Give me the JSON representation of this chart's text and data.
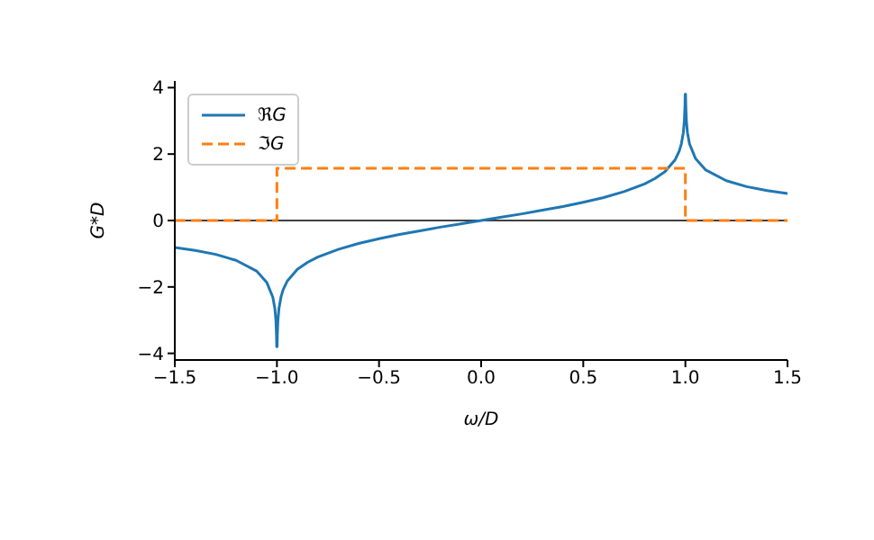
{
  "chart_data": {
    "type": "line",
    "xlabel": "ω/D",
    "ylabel": "G*D",
    "xlim": [
      -1.5,
      1.5
    ],
    "ylim": [
      -4.2,
      4.2
    ],
    "xticks": [
      {
        "value": -1.5,
        "label": "−1.5"
      },
      {
        "value": -1.0,
        "label": "−1.0"
      },
      {
        "value": -0.5,
        "label": "−0.5"
      },
      {
        "value": 0,
        "label": "0.0"
      },
      {
        "value": 0.5,
        "label": "0.5"
      },
      {
        "value": 1.0,
        "label": "1.0"
      },
      {
        "value": 1.5,
        "label": "1.5"
      }
    ],
    "yticks": [
      {
        "value": -4,
        "label": "−4"
      },
      {
        "value": -2,
        "label": "−2"
      },
      0,
      2,
      4
    ],
    "grid": false,
    "legend": "top left",
    "marker": "none",
    "ref_lines": [
      {
        "axis": "y",
        "value": 0,
        "color": "#000000"
      }
    ],
    "series": [
      {
        "name": "ℜG",
        "color": "#1f77b4",
        "line_style": "solid",
        "x": [
          -1.5,
          -1.4,
          -1.3,
          -1.2,
          -1.1,
          -1.05,
          -1.02,
          -1.01,
          -1.005,
          -1.002,
          -1.001,
          -0.999,
          -0.998,
          -0.995,
          -0.99,
          -0.98,
          -0.97,
          -0.95,
          -0.9,
          -0.85,
          -0.8,
          -0.7,
          -0.6,
          -0.5,
          -0.4,
          -0.3,
          -0.2,
          -0.1,
          0,
          0.1,
          0.2,
          0.3,
          0.4,
          0.5,
          0.6,
          0.7,
          0.8,
          0.85,
          0.9,
          0.95,
          0.97,
          0.98,
          0.99,
          0.995,
          0.998,
          0.999,
          1.001,
          1.002,
          1.005,
          1.01,
          1.02,
          1.05,
          1.1,
          1.2,
          1.3,
          1.4,
          1.5
        ],
        "values": [
          -0.81,
          -0.9,
          -1.02,
          -1.2,
          -1.52,
          -1.86,
          -2.31,
          -2.65,
          -3.0,
          -3.45,
          -3.8,
          -3.8,
          -3.45,
          -3.0,
          -2.65,
          -2.3,
          -2.09,
          -1.83,
          -1.47,
          -1.26,
          -1.1,
          -0.87,
          -0.69,
          -0.55,
          -0.42,
          -0.31,
          -0.2,
          -0.1,
          0,
          0.1,
          0.2,
          0.31,
          0.42,
          0.55,
          0.69,
          0.87,
          1.1,
          1.26,
          1.47,
          1.83,
          2.09,
          2.3,
          2.65,
          3.0,
          3.45,
          3.8,
          3.8,
          3.45,
          3.0,
          2.65,
          2.31,
          1.86,
          1.52,
          1.2,
          1.02,
          0.9,
          0.81
        ]
      },
      {
        "name": "ℑG",
        "color": "#ff7f0e",
        "line_style": "dashed",
        "x": [
          -1.5,
          -1.0,
          -1.0,
          1.0,
          1.0,
          1.5
        ],
        "values": [
          0,
          0,
          1.57,
          1.57,
          0,
          0
        ]
      }
    ]
  }
}
